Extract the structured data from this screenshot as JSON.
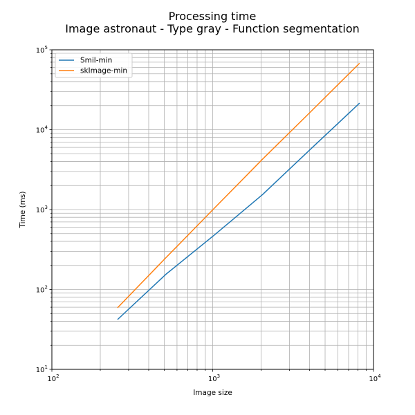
{
  "chart_data": {
    "type": "line",
    "title_line1": "Processing time",
    "title_line2": "Image astronaut - Type gray - Function segmentation",
    "xlabel": "Image size",
    "ylabel": "Time (ms)",
    "xscale": "log",
    "yscale": "log",
    "xlim": [
      100,
      10000
    ],
    "ylim": [
      10,
      100000
    ],
    "grid": "major and minor",
    "legend_position": "upper-left",
    "x_ticks": [
      {
        "base": "10",
        "exp": "2"
      },
      {
        "base": "10",
        "exp": "3"
      },
      {
        "base": "10",
        "exp": "4"
      }
    ],
    "y_ticks": [
      {
        "base": "10",
        "exp": "1"
      },
      {
        "base": "10",
        "exp": "2"
      },
      {
        "base": "10",
        "exp": "3"
      },
      {
        "base": "10",
        "exp": "4"
      },
      {
        "base": "10",
        "exp": "5"
      }
    ],
    "series": [
      {
        "name": "Smil-min",
        "color": "#1f77b4",
        "x": [
          256,
          512,
          1024,
          2048,
          4096,
          8192
        ],
        "y": [
          42,
          155,
          480,
          1550,
          5800,
          21500
        ]
      },
      {
        "name": "skImage-min",
        "color": "#ff7f0e",
        "x": [
          256,
          512,
          1024,
          2048,
          4096,
          8192
        ],
        "y": [
          59,
          250,
          1040,
          4300,
          17000,
          68000
        ]
      }
    ]
  }
}
